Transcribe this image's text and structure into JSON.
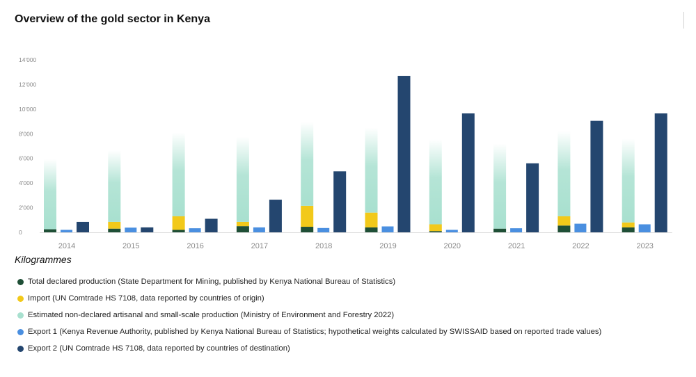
{
  "title": "Overview of the gold sector in Kenya",
  "unit_label": "Kilogrammes",
  "legend": [
    {
      "label": "Total declared production (State Department for Mining, published by Kenya National Bureau of Statistics)",
      "color": "#1f4f36"
    },
    {
      "label": "Import (UN Comtrade HS 7108, data reported by countries of origin)",
      "color": "#f2c91a"
    },
    {
      "label": "Estimated non-declared artisanal and small-scale production (Ministry of Environment and Forestry 2022)",
      "color": "#a8e0cf"
    },
    {
      "label": "Export 1 (Kenya Revenue Authority, published by Kenya National Bureau of Statistics; hypothetical weights calculated by SWISSAID based on reported trade values)",
      "color": "#4a8fe0"
    },
    {
      "label": "Export 2 (UN Comtrade HS 7108, data reported by countries of destination)",
      "color": "#24466f"
    }
  ],
  "chart_data": {
    "type": "bar",
    "title": "Overview of the gold sector in Kenya",
    "ylabel": "Kilogrammes",
    "xlabel": "",
    "ylim": [
      0,
      14000
    ],
    "yticks": [
      0,
      2000,
      4000,
      6000,
      8000,
      10000,
      12000,
      14000
    ],
    "ytick_labels": [
      "0",
      "2'000",
      "4'000",
      "6'000",
      "8'000",
      "10'000",
      "12'000",
      "14'000"
    ],
    "categories": [
      "2014",
      "2015",
      "2016",
      "2017",
      "2018",
      "2019",
      "2020",
      "2021",
      "2022",
      "2023"
    ],
    "stacked_group": [
      "Total declared production",
      "Import",
      "Estimated non-declared artisanal and small-scale production"
    ],
    "series": [
      {
        "name": "Total declared production",
        "color": "#1f4f36",
        "values": [
          250,
          300,
          200,
          500,
          450,
          400,
          100,
          300,
          550,
          400
        ]
      },
      {
        "name": "Import",
        "color": "#f2c91a",
        "values": [
          0,
          550,
          1100,
          350,
          1700,
          1200,
          550,
          0,
          750,
          400
        ]
      },
      {
        "name": "Estimated non-declared artisanal and small-scale production",
        "color": "#a8e0cf",
        "values": [
          5700,
          5800,
          6800,
          6900,
          6800,
          6900,
          6900,
          6900,
          6900,
          6800
        ]
      },
      {
        "name": "Export 1",
        "color": "#4a8fe0",
        "values": [
          200,
          380,
          330,
          400,
          350,
          480,
          200,
          330,
          700,
          650
        ]
      },
      {
        "name": "Export 2",
        "color": "#24466f",
        "values": [
          850,
          400,
          1100,
          2650,
          4950,
          12700,
          9650,
          5600,
          9050,
          9650
        ]
      }
    ]
  }
}
